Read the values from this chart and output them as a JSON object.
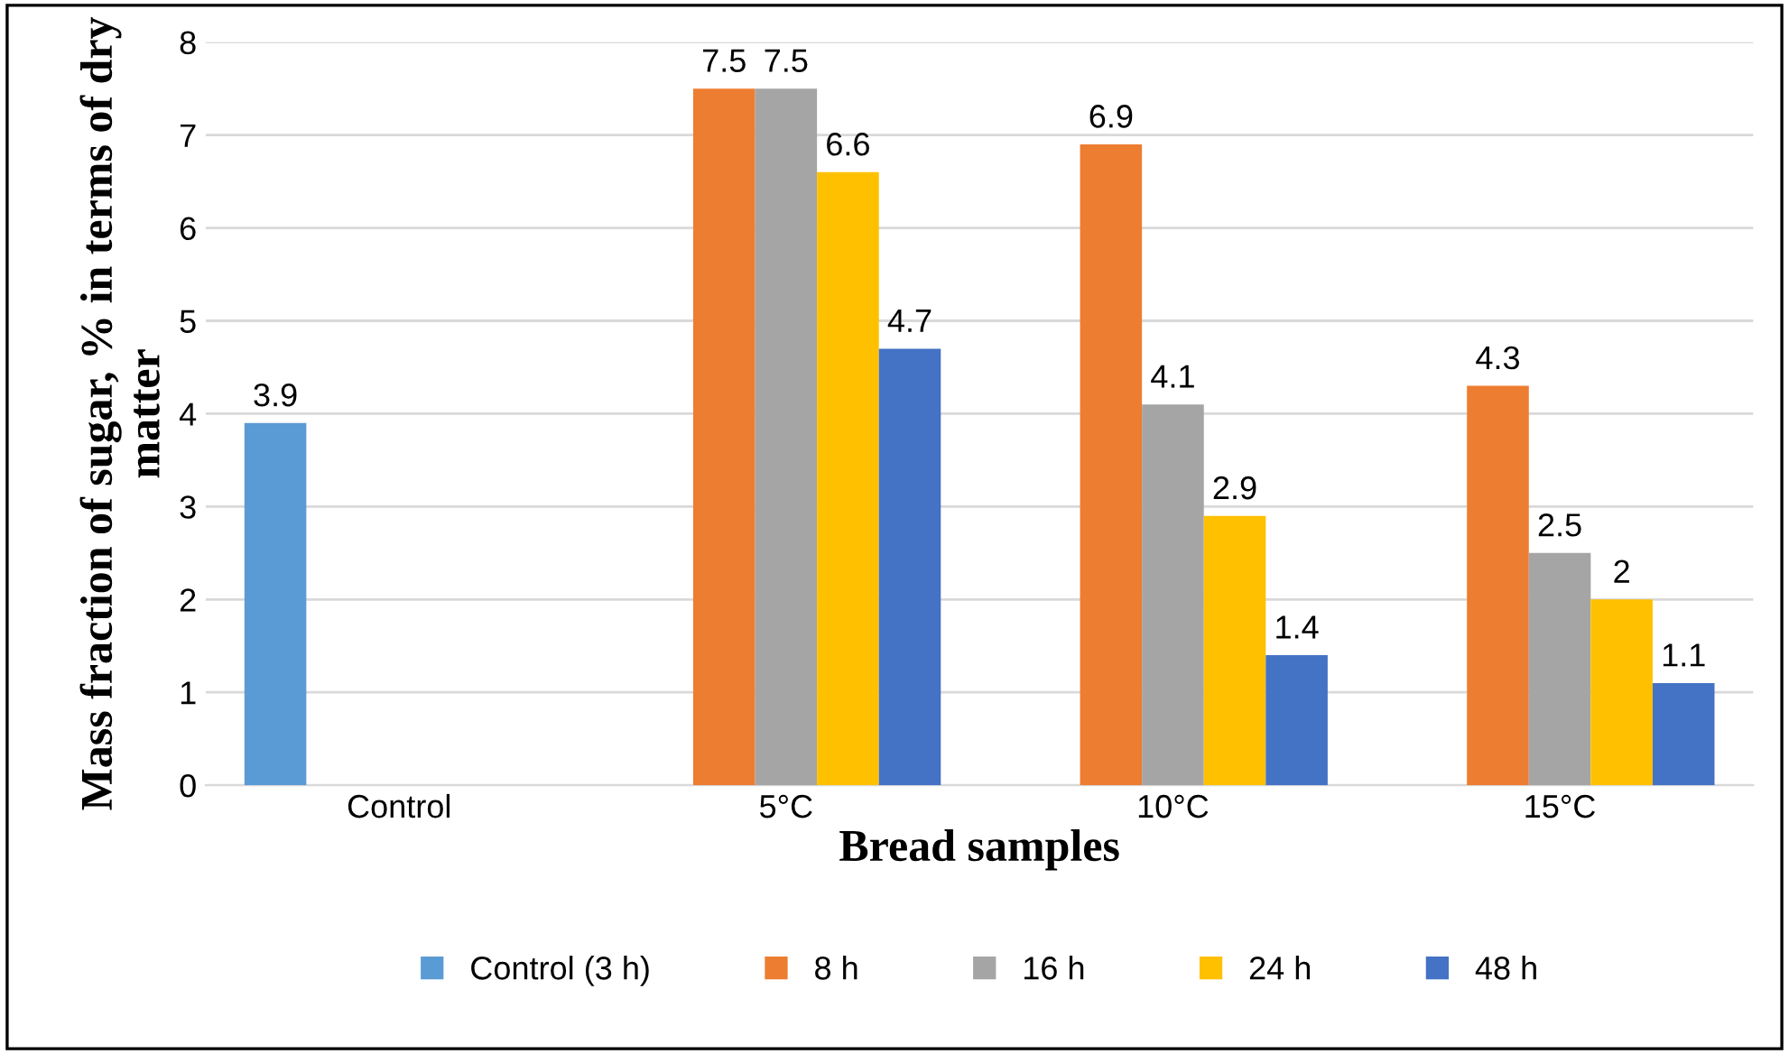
{
  "chart_data": {
    "type": "bar",
    "xlabel": "Bread samples",
    "ylabel": "Mass fraction of sugar, % in terms of dry matter",
    "categories": [
      "Control",
      "5°C",
      "10°C",
      "15°C"
    ],
    "series": [
      {
        "name": "Control (3 h)",
        "color": "#5b9bd5",
        "values": [
          3.9,
          null,
          null,
          null
        ]
      },
      {
        "name": "8 h",
        "color": "#ed7d31",
        "values": [
          null,
          7.5,
          6.9,
          4.3
        ]
      },
      {
        "name": "16 h",
        "color": "#a5a5a5",
        "values": [
          null,
          7.5,
          4.1,
          2.5
        ]
      },
      {
        "name": "24 h",
        "color": "#ffc000",
        "values": [
          null,
          6.6,
          2.9,
          2
        ]
      },
      {
        "name": "48 h",
        "color": "#4472c4",
        "values": [
          null,
          4.7,
          1.4,
          1.1
        ]
      }
    ],
    "ylim": [
      0,
      8
    ],
    "yticks": [
      0,
      1,
      2,
      3,
      4,
      5,
      6,
      7,
      8
    ],
    "grid": "y",
    "legend": "bottom",
    "data_labels": true
  }
}
